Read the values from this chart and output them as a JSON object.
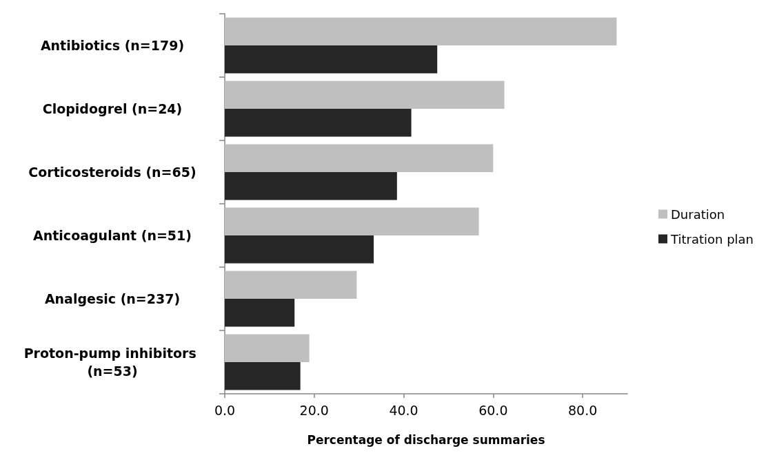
{
  "chart_data": {
    "type": "bar",
    "orientation": "horizontal",
    "xlabel": "Percentage of discharge summaries",
    "categories": [
      "Antibiotics (n=179)",
      "Clopidogrel (n=24)",
      "Corticosteroids (n=65)",
      "Anticoagulant (n=51)",
      "Analgesic (n=237)",
      "Proton-pump inhibitors (n=53)"
    ],
    "series": [
      {
        "name": "Duration",
        "color": "#bfbfbf",
        "values": [
          87.6,
          62.5,
          60.0,
          56.8,
          29.5,
          18.9
        ]
      },
      {
        "name": "Titration plan",
        "color": "#262626",
        "values": [
          47.5,
          41.7,
          38.5,
          33.3,
          15.6,
          16.9
        ]
      }
    ],
    "xlim": [
      0,
      90
    ],
    "xticks": [
      {
        "value": 0,
        "label": "0.0"
      },
      {
        "value": 20,
        "label": "20.0"
      },
      {
        "value": 40,
        "label": "40.0"
      },
      {
        "value": 60,
        "label": "60.0"
      },
      {
        "value": 80,
        "label": "80.0"
      }
    ],
    "grid": false,
    "legend": "right"
  }
}
